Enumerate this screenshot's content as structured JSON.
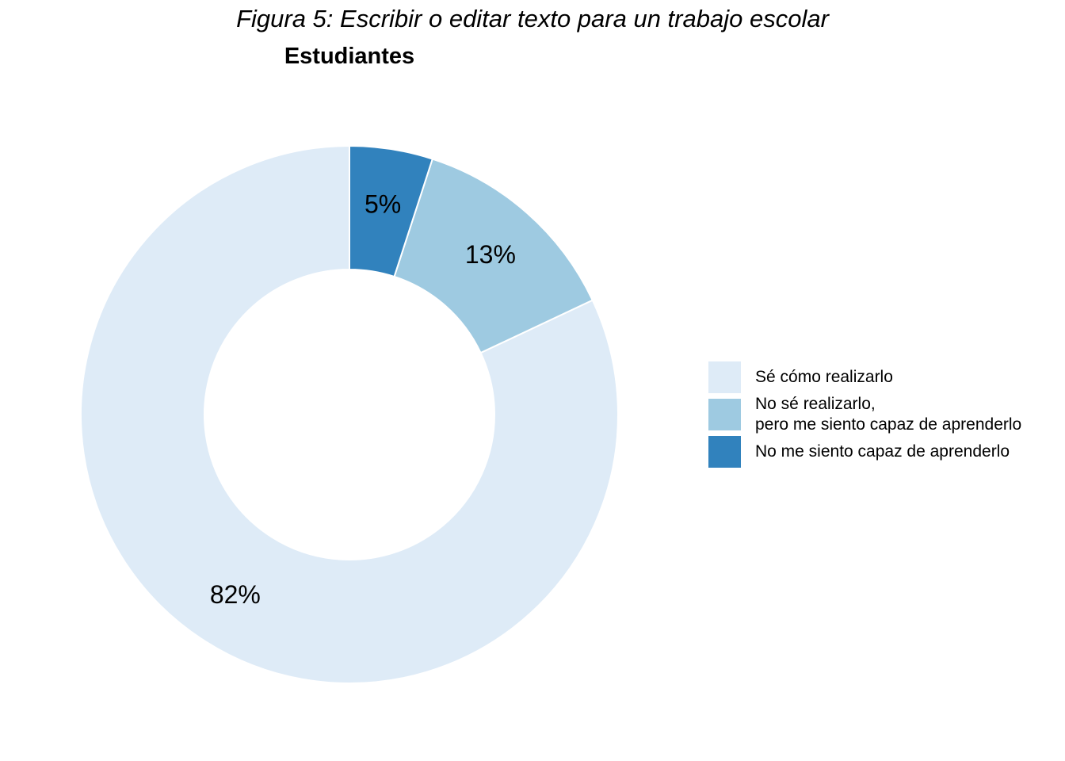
{
  "figure_title": "Figura 5: Escribir o editar texto para un trabajo escolar",
  "chart_data": {
    "type": "pie",
    "variant": "donut",
    "title": "Estudiantes",
    "categories": [
      "Sé cómo realizarlo",
      "No sé realizarlo,\npero me siento capaz de aprenderlo",
      "No me siento capaz de aprenderlo"
    ],
    "values": [
      82,
      13,
      5
    ],
    "value_labels": [
      "82%",
      "13%",
      "5%"
    ],
    "colors": [
      "#deebf7",
      "#9ecae1",
      "#3182bd"
    ],
    "legend_position": "right"
  }
}
